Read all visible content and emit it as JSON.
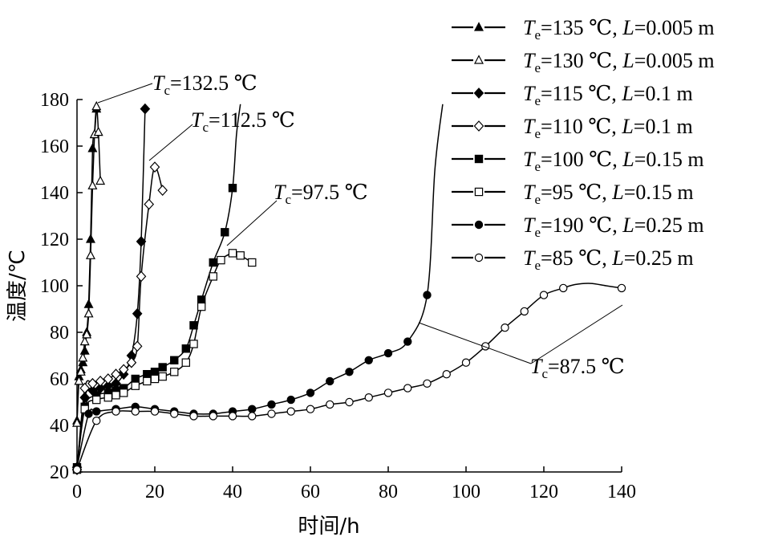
{
  "chart_data": {
    "type": "line",
    "xlabel": "时间/h",
    "ylabel": "温度/℃",
    "xlim": [
      0,
      140
    ],
    "ylim": [
      20,
      180
    ],
    "xticks": [
      "0",
      "20",
      "40",
      "60",
      "80",
      "100",
      "120",
      "140"
    ],
    "yticks": [
      "20",
      "40",
      "60",
      "80",
      "100",
      "120",
      "140",
      "160",
      "180"
    ],
    "grid": false,
    "legend_position": "top-right",
    "series": [
      {
        "name": "Te=135 ℃, L=0.005 m",
        "name_parts": {
          "sym": "T",
          "sub": "e",
          "val": "=135 ℃, ",
          "lsym": "L",
          "lval": "=0.005 m"
        },
        "marker": "triangle-filled",
        "points": [
          [
            0,
            42
          ],
          [
            0.5,
            61
          ],
          [
            1,
            64
          ],
          [
            1.5,
            67
          ],
          [
            2,
            72
          ],
          [
            2.5,
            80
          ],
          [
            3,
            92
          ],
          [
            3.5,
            120
          ],
          [
            4,
            159
          ],
          [
            4.5,
            165
          ],
          [
            5,
            176
          ]
        ]
      },
      {
        "name": "Te=130 ℃, L=0.005 m",
        "name_parts": {
          "sym": "T",
          "sub": "e",
          "val": "=130 ℃, ",
          "lsym": "L",
          "lval": "=0.005 m"
        },
        "marker": "triangle-open",
        "points": [
          [
            0,
            41
          ],
          [
            0.5,
            59
          ],
          [
            1,
            63
          ],
          [
            1.5,
            69
          ],
          [
            2,
            76
          ],
          [
            2.5,
            79
          ],
          [
            3,
            88
          ],
          [
            3.5,
            113
          ],
          [
            4,
            143
          ],
          [
            4.5,
            165
          ],
          [
            5,
            177
          ],
          [
            5.5,
            166
          ],
          [
            6,
            145
          ]
        ]
      },
      {
        "name": "Te=115 ℃, L=0.1 m",
        "name_parts": {
          "sym": "T",
          "sub": "e",
          "val": "=115 ℃, ",
          "lsym": "L",
          "lval": "=0.1 m"
        },
        "marker": "diamond-filled",
        "points": [
          [
            0,
            22
          ],
          [
            2,
            52
          ],
          [
            4,
            55
          ],
          [
            6,
            56
          ],
          [
            8,
            57
          ],
          [
            10,
            58
          ],
          [
            12,
            62
          ],
          [
            14,
            70
          ],
          [
            15.5,
            88
          ],
          [
            16.5,
            119
          ],
          [
            17.5,
            176
          ]
        ]
      },
      {
        "name": "Te=110 ℃, L=0.1 m",
        "name_parts": {
          "sym": "T",
          "sub": "e",
          "val": "=110 ℃, ",
          "lsym": "L",
          "lval": "=0.1 m"
        },
        "marker": "diamond-open",
        "points": [
          [
            0,
            21
          ],
          [
            2,
            56
          ],
          [
            4,
            58
          ],
          [
            6,
            59
          ],
          [
            8,
            60
          ],
          [
            10,
            62
          ],
          [
            12,
            64
          ],
          [
            14,
            67
          ],
          [
            15.5,
            74
          ],
          [
            16.5,
            104
          ],
          [
            18.5,
            135
          ],
          [
            20,
            151
          ],
          [
            22,
            141
          ]
        ]
      },
      {
        "name": "Te=100 ℃, L=0.15 m",
        "name_parts": {
          "sym": "T",
          "sub": "e",
          "val": "=100 ℃, ",
          "lsym": "L",
          "lval": "=0.15 m"
        },
        "marker": "square-filled",
        "points": [
          [
            0,
            22
          ],
          [
            2,
            48
          ],
          [
            5,
            53
          ],
          [
            8,
            54
          ],
          [
            10,
            55
          ],
          [
            12,
            56
          ],
          [
            15,
            60
          ],
          [
            18,
            62
          ],
          [
            20,
            63
          ],
          [
            22,
            65
          ],
          [
            25,
            68
          ],
          [
            28,
            73
          ],
          [
            30,
            83
          ],
          [
            32,
            94
          ],
          [
            35,
            110
          ],
          [
            38,
            123
          ],
          [
            40,
            142
          ]
        ]
      },
      {
        "name": "Te=95 ℃, L=0.15 m",
        "name_parts": {
          "sym": "T",
          "sub": "e",
          "val": "=95 ℃, ",
          "lsym": "L",
          "lval": "=0.15 m"
        },
        "marker": "square-open",
        "points": [
          [
            0,
            21
          ],
          [
            2,
            47
          ],
          [
            5,
            51
          ],
          [
            8,
            52
          ],
          [
            10,
            53
          ],
          [
            12,
            54
          ],
          [
            15,
            57
          ],
          [
            18,
            59
          ],
          [
            20,
            60
          ],
          [
            22,
            61
          ],
          [
            25,
            63
          ],
          [
            28,
            67
          ],
          [
            30,
            75
          ],
          [
            32,
            91
          ],
          [
            35,
            104
          ],
          [
            37,
            111
          ],
          [
            40,
            114
          ],
          [
            42,
            113
          ],
          [
            45,
            110
          ]
        ]
      },
      {
        "name": "Te=190 ℃, L=0.25 m",
        "name_parts": {
          "sym": "T",
          "sub": "e",
          "val": "=190 ℃, ",
          "lsym": "L",
          "lval": "=0.25 m"
        },
        "marker": "circle-filled",
        "points": [
          [
            0,
            22
          ],
          [
            3,
            45
          ],
          [
            5,
            46
          ],
          [
            10,
            47
          ],
          [
            15,
            48
          ],
          [
            20,
            47
          ],
          [
            25,
            46
          ],
          [
            30,
            45
          ],
          [
            35,
            45
          ],
          [
            40,
            46
          ],
          [
            45,
            47
          ],
          [
            50,
            49
          ],
          [
            55,
            51
          ],
          [
            60,
            54
          ],
          [
            65,
            59
          ],
          [
            70,
            63
          ],
          [
            75,
            68
          ],
          [
            80,
            71
          ],
          [
            85,
            76
          ],
          [
            90,
            96
          ]
        ]
      },
      {
        "name": "Te=85 ℃, L=0.25 m",
        "name_parts": {
          "sym": "T",
          "sub": "e",
          "val": "=85 ℃, ",
          "lsym": "L",
          "lval": "=0.25 m"
        },
        "marker": "circle-open",
        "points": [
          [
            0,
            21
          ],
          [
            5,
            42
          ],
          [
            10,
            46
          ],
          [
            15,
            46
          ],
          [
            20,
            46
          ],
          [
            25,
            45
          ],
          [
            30,
            44
          ],
          [
            35,
            44
          ],
          [
            40,
            44
          ],
          [
            45,
            44
          ],
          [
            50,
            45
          ],
          [
            55,
            46
          ],
          [
            60,
            47
          ],
          [
            65,
            49
          ],
          [
            70,
            50
          ],
          [
            75,
            52
          ],
          [
            80,
            54
          ],
          [
            85,
            56
          ],
          [
            90,
            58
          ],
          [
            95,
            62
          ],
          [
            100,
            67
          ],
          [
            105,
            74
          ],
          [
            110,
            82
          ],
          [
            115,
            89
          ],
          [
            120,
            96
          ],
          [
            125,
            99
          ],
          [
            140,
            99
          ]
        ]
      }
    ],
    "annotations": [
      {
        "sym": "T",
        "sub": "c",
        "val": "=132.5 ℃"
      },
      {
        "sym": "T",
        "sub": "c",
        "val": "=112.5 ℃"
      },
      {
        "sym": "T",
        "sub": "c",
        "val": "=97.5 ℃"
      },
      {
        "sym": "T",
        "sub": "c",
        "val": "=87.5 ℃"
      }
    ]
  }
}
